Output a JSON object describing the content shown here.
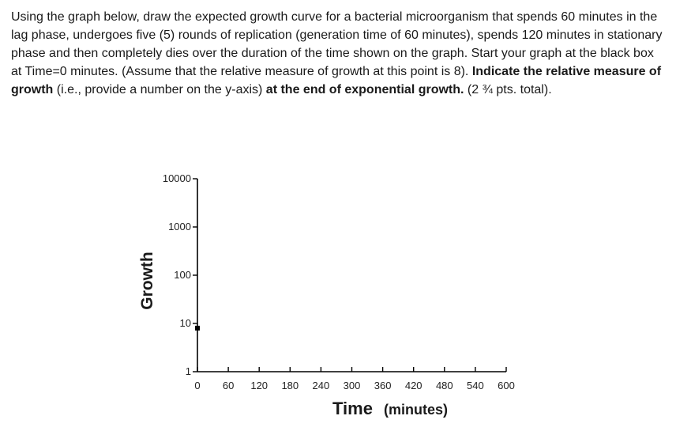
{
  "question": {
    "part1": "Using the graph below, draw the expected growth curve for a bacterial microorganism that spends 60 minutes in the lag phase, undergoes five (5) rounds of replication (generation time of 60 minutes), spends 120 minutes in stationary phase and then completely dies over the duration of the time shown on the graph.  Start your graph at the black box at Time=0 minutes.  (Assume that the relative measure of growth at this point is 8).",
    "part2_bold": "Indicate the relative measure of growth",
    "part3": "(i.e., provide a number on the y-axis)",
    "part4_bold": "at the end of exponential growth.",
    "part5": "(2 ¾ pts. total)."
  },
  "chart_data": {
    "type": "scatter",
    "x_ticks": [
      "0",
      "60",
      "120",
      "180",
      "240",
      "300",
      "360",
      "420",
      "480",
      "540",
      "600"
    ],
    "y_ticks": [
      "1",
      "10",
      "100",
      "1000",
      "10000"
    ],
    "xlim": [
      0,
      600
    ],
    "ylim": [
      1,
      10000
    ],
    "y_scale": "log",
    "xlabel_main": "Time",
    "xlabel_unit": "(minutes)",
    "ylabel": "Growth",
    "points": [
      {
        "x": 0,
        "y": 8
      }
    ],
    "marker_color": "#000000",
    "axis_color": "#000000"
  }
}
